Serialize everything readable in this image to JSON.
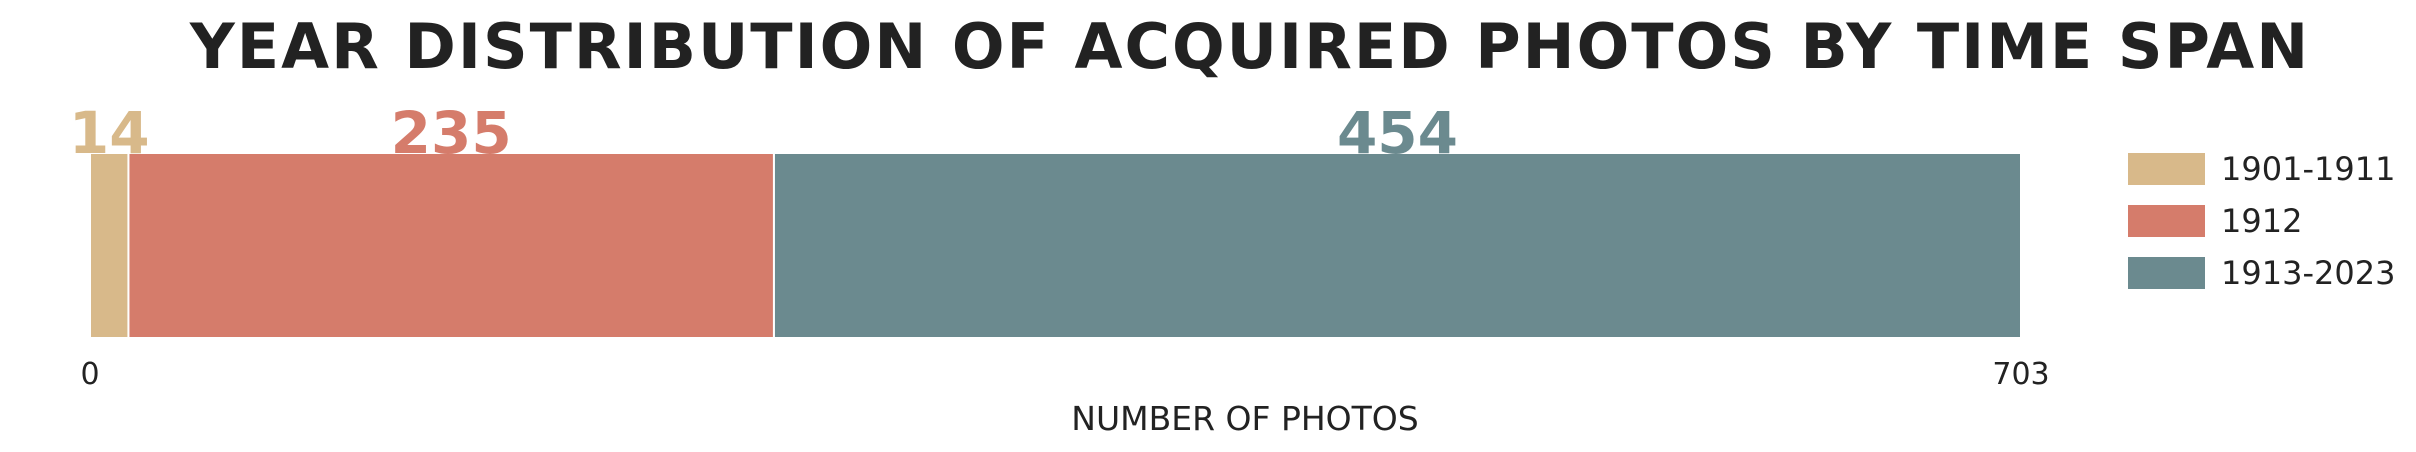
{
  "chart_data": {
    "type": "bar",
    "orientation": "horizontal",
    "stacked": true,
    "title": "YEAR DISTRIBUTION OF ACQUIRED PHOTOS BY TIME SPAN",
    "xlabel": "NUMBER OF PHOTOS",
    "ylabel": "",
    "xlim": [
      0,
      703
    ],
    "x_tick_labels": [
      "0",
      "703"
    ],
    "grid": false,
    "legend_position": "right",
    "series": [
      {
        "name": "1901-1911",
        "value": 14,
        "color": "#d8b98a"
      },
      {
        "name": "1912",
        "value": 235,
        "color": "#d57c6b"
      },
      {
        "name": "1913-2023",
        "value": 454,
        "color": "#6b8a8f"
      }
    ]
  }
}
